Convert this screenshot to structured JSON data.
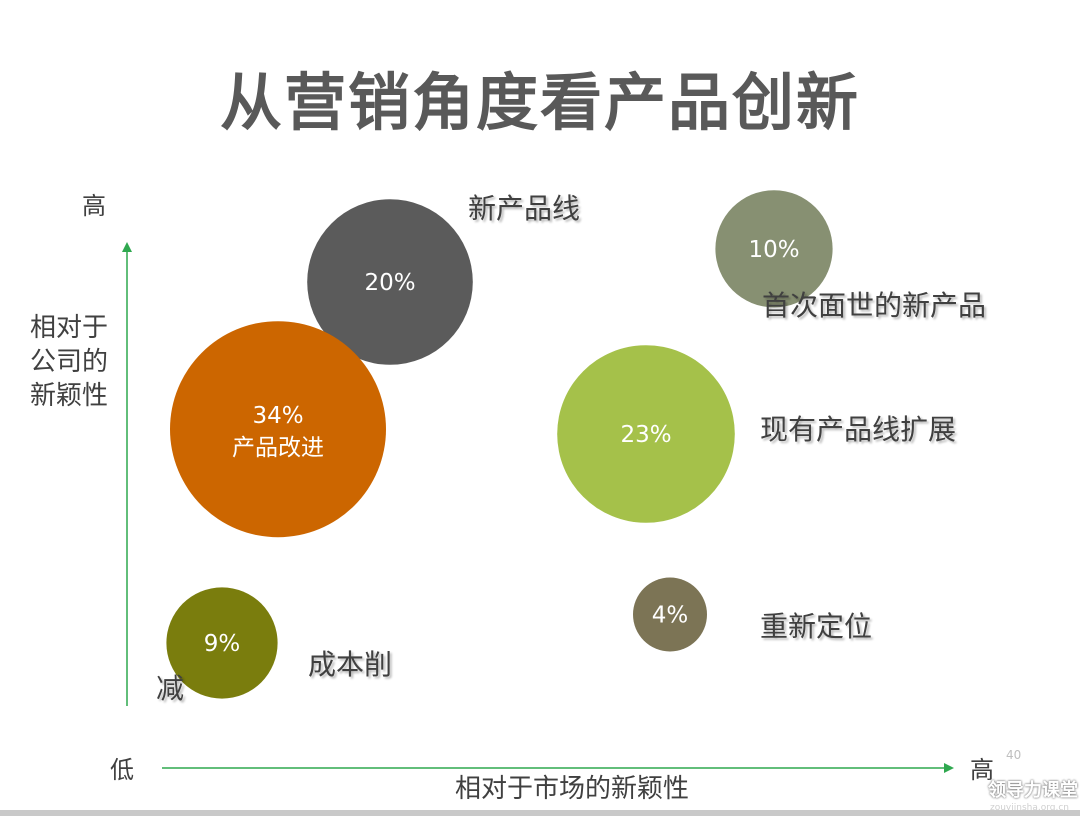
{
  "slide": {
    "title": "从营销角度看产品创新",
    "page_number": "40",
    "watermark": "领导力课堂",
    "watermark_sub": "zouyiinsha.org.cn"
  },
  "chart_data": {
    "type": "scatter",
    "variant": "bubble",
    "title": "从营销角度看产品创新",
    "xlabel": "相对于市场的新颖性",
    "ylabel": "相对于公司的新颖性",
    "x_low_label": "低",
    "x_high_label": "高",
    "y_high_label": "高",
    "grid": false,
    "legend": "none",
    "series": [
      {
        "name": "新产品线",
        "value": "20%",
        "size": 20,
        "x": 3.0,
        "y": 8.8,
        "color": "#5b5b5b"
      },
      {
        "name": "首次面世的新产品",
        "value": "10%",
        "size": 10,
        "x": 7.8,
        "y": 9.5,
        "color": "#879072"
      },
      {
        "name": "产品改进",
        "value": "34%",
        "size": 34,
        "x": 1.6,
        "y": 5.7,
        "color": "#cc6600"
      },
      {
        "name": "现有产品线扩展",
        "value": "23%",
        "size": 23,
        "x": 6.2,
        "y": 5.6,
        "color": "#a5c14a"
      },
      {
        "name": "重新定位",
        "value": "4%",
        "size": 4,
        "x": 6.5,
        "y": 1.8,
        "color": "#7c7455"
      },
      {
        "name": "成本削减",
        "value": "9%",
        "size": 9,
        "x": 0.9,
        "y": 1.2,
        "color": "#7a7d0d"
      }
    ],
    "bubble_labels": {
      "new_line": "新产品线",
      "first_new": "首次面世的新产品",
      "improve": "产品改进",
      "extend": "现有产品线扩展",
      "reposition": "重新定位",
      "cost_cut_main": "成本削",
      "cost_cut_tail": "减"
    },
    "colors": {
      "axis": "#2fa84f"
    }
  }
}
